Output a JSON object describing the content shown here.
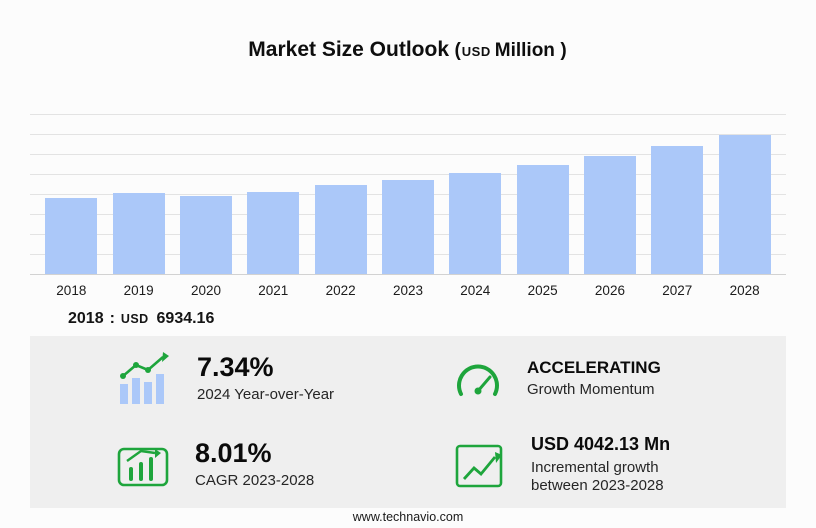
{
  "title": {
    "main": "Market Size Outlook",
    "paren_open": "(",
    "currency": "USD",
    "unit": "Million",
    "paren_close": ")"
  },
  "chart_data": {
    "type": "bar",
    "title": "Market Size Outlook (USD Million)",
    "categories": [
      "2018",
      "2019",
      "2020",
      "2021",
      "2022",
      "2023",
      "2024",
      "2025",
      "2026",
      "2027",
      "2028"
    ],
    "values": [
      6934.16,
      7350,
      7120,
      7480,
      8080,
      8598.51,
      9229.4,
      9930,
      10750,
      11610,
      12640.64
    ],
    "xlabel": "",
    "ylabel": "",
    "ylim": [
      0,
      14560
    ],
    "grid": true,
    "legend_position": "none"
  },
  "annotation": {
    "year": "2018",
    "separator": ":",
    "currency": "USD",
    "value": "6934.16"
  },
  "stats": [
    {
      "icon": "yoy-bar-growth-icon",
      "value": "7.34%",
      "label": "2024 Year-over-Year"
    },
    {
      "icon": "speedometer-icon",
      "value": "ACCELERATING",
      "label": "Growth Momentum"
    },
    {
      "icon": "cagr-chart-icon",
      "value": "8.01%",
      "label": "CAGR 2023-2028"
    },
    {
      "icon": "incremental-trend-icon",
      "value": "USD 4042.13 Mn",
      "label": "Incremental growth between 2023-2028"
    }
  ],
  "footer": {
    "url": "www.technavio.com"
  },
  "colors": {
    "accent_green": "#1ea53c",
    "bar_blue": "#abc8f9",
    "panel_bg": "#efefef",
    "grid_line": "#e3e3e3",
    "baseline": "#d2d2d2"
  }
}
